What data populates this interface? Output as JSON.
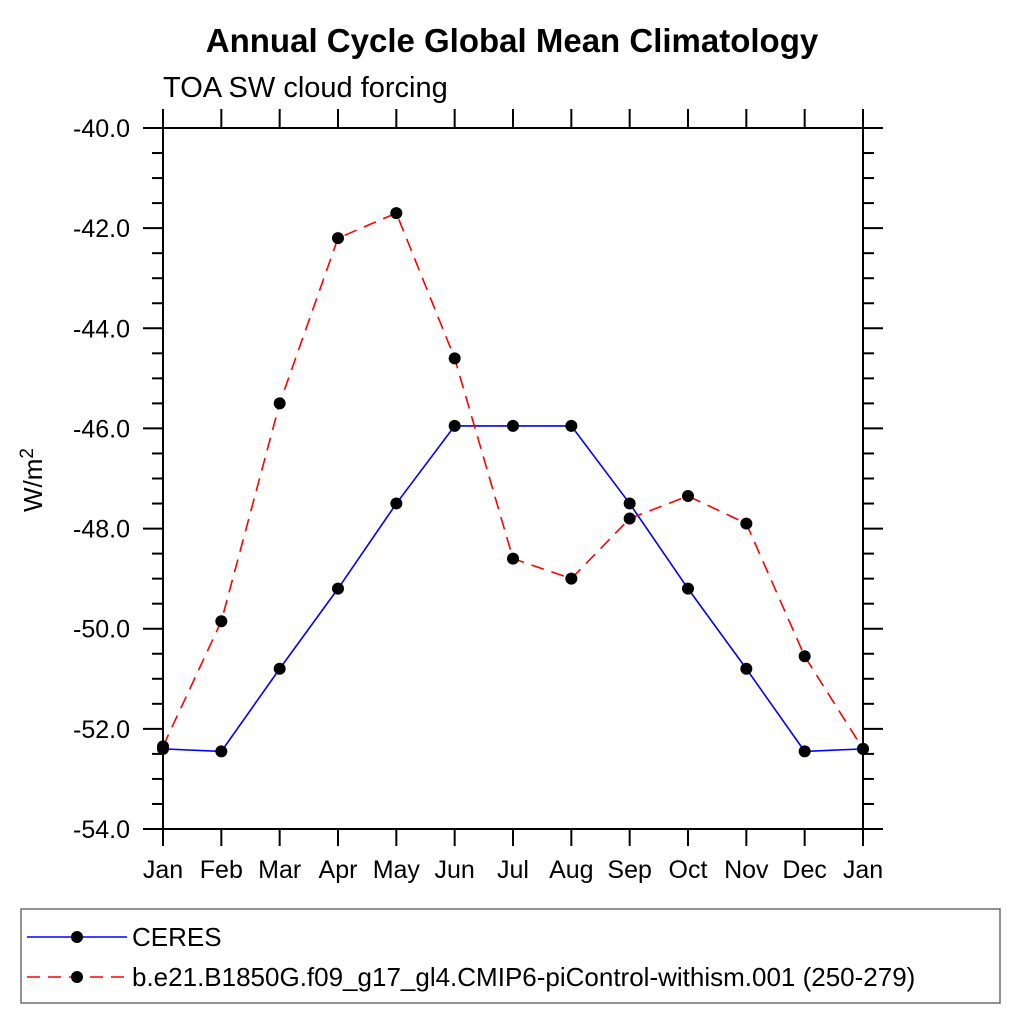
{
  "chart_data": {
    "type": "line",
    "title": "Annual Cycle Global Mean Climatology",
    "subtitle": "TOA SW cloud forcing",
    "ylabel": {
      "base": "W/m",
      "sup": "2",
      "text": "W/m²"
    },
    "ylim": [
      -54.0,
      -40.0
    ],
    "ytick_major_step": 2.0,
    "ytick_minor_step": 0.5,
    "yticks": [
      {
        "v": -40.0,
        "label": "-40.0"
      },
      {
        "v": -42.0,
        "label": "-42.0"
      },
      {
        "v": -44.0,
        "label": "-44.0"
      },
      {
        "v": -46.0,
        "label": "-46.0"
      },
      {
        "v": -48.0,
        "label": "-48.0"
      },
      {
        "v": -50.0,
        "label": "-50.0"
      },
      {
        "v": -52.0,
        "label": "-52.0"
      },
      {
        "v": -54.0,
        "label": "-54.0"
      }
    ],
    "categories": [
      "Jan",
      "Feb",
      "Mar",
      "Apr",
      "May",
      "Jun",
      "Jul",
      "Aug",
      "Sep",
      "Oct",
      "Nov",
      "Dec",
      "Jan"
    ],
    "series": [
      {
        "name": "CERES",
        "color": "#0000ff",
        "line_style": "solid",
        "values": [
          -52.4,
          -52.45,
          -50.8,
          -49.2,
          -47.5,
          -45.95,
          -45.95,
          -45.95,
          -47.5,
          -49.2,
          -50.8,
          -52.45,
          -52.4
        ]
      },
      {
        "name": "b.e21.B1850G.f09_g17_gl4.CMIP6-piControl-withism.001 (250-279)",
        "color": "#ff0000",
        "line_style": "dashed",
        "values": [
          -52.35,
          -49.85,
          -45.5,
          -42.2,
          -41.7,
          -44.6,
          -48.6,
          -49.0,
          -47.8,
          -47.35,
          -47.9,
          -50.55,
          -52.4
        ]
      }
    ],
    "marker": {
      "shape": "circle",
      "color": "#000000"
    },
    "axis_color": "#000000",
    "grid": false,
    "legend_position": "bottom"
  }
}
